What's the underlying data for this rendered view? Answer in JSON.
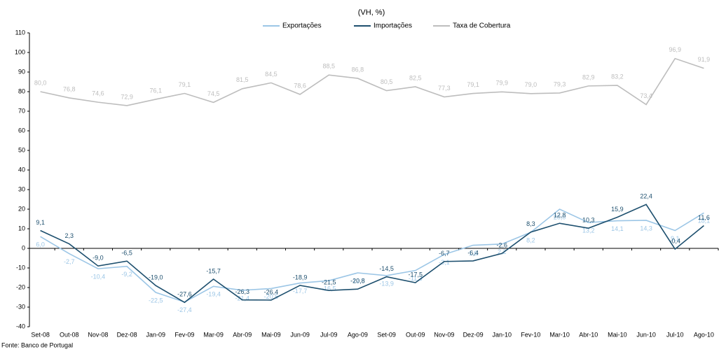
{
  "chart_data": {
    "type": "line",
    "title": "(VH, %)",
    "categories": [
      "Set-08",
      "Out-08",
      "Nov-08",
      "Dez-08",
      "Jan-09",
      "Fev-09",
      "Mar-09",
      "Abr-09",
      "Mai-09",
      "Jun-09",
      "Jul-09",
      "Ago-09",
      "Set-09",
      "Out-09",
      "Nov-09",
      "Dez-09",
      "Jan-10",
      "Fev-10",
      "Mar-10",
      "Abr-10",
      "Mai-10",
      "Jun-10",
      "Jul-10",
      "Ago-10"
    ],
    "series": [
      {
        "name": "Exportações",
        "color": "#9cc6e6",
        "values": [
          6.0,
          -2.7,
          -10.4,
          -9.2,
          -22.5,
          -27.4,
          -19.4,
          -21.4,
          -20.5,
          -17.7,
          -16.5,
          -12.5,
          -13.9,
          -11.3,
          -3.1,
          1.6,
          2.2,
          8.2,
          20.0,
          13.2,
          14.1,
          14.3,
          9.1,
          18.1
        ],
        "value_labels": [
          "6,0",
          "-2,7",
          "-10,4",
          "-9,2",
          "-22,5",
          "-27,4",
          "-19,4",
          "-21,4",
          "-20,5",
          "-17,7",
          "-16,5",
          "-12,5",
          "-13,9",
          "-11,3",
          "-3,1",
          "1,6",
          "2,2",
          "8,2",
          "20,0",
          "13,2",
          "14,1",
          "14,3",
          "9,1",
          "18,1"
        ]
      },
      {
        "name": "Importações",
        "color": "#1d4f6e",
        "values": [
          9.1,
          2.3,
          -9.0,
          -6.5,
          -19.0,
          -27.6,
          -15.7,
          -26.3,
          -26.4,
          -18.9,
          -21.5,
          -20.8,
          -14.5,
          -17.5,
          -6.7,
          -6.4,
          -2.6,
          8.3,
          12.8,
          10.3,
          15.9,
          22.4,
          -0.4,
          11.6
        ],
        "value_labels": [
          "9,1",
          "2,3",
          "-9,0",
          "-6,5",
          "-19,0",
          "-27,6",
          "-15,7",
          "-26,3",
          "-26,4",
          "-18,9",
          "-21,5",
          "-20,8",
          "-14,5",
          "-17,5",
          "-6,7",
          "-6,4",
          "-2,6",
          "8,3",
          "12,8",
          "10,3",
          "15,9",
          "22,4",
          "-0,4",
          "11,6"
        ]
      },
      {
        "name": "Taxa de Cobertura",
        "color": "#bdbdbd",
        "values": [
          80.0,
          76.8,
          74.6,
          72.9,
          76.1,
          79.1,
          74.5,
          81.5,
          84.5,
          78.6,
          88.5,
          86.8,
          80.5,
          82.5,
          77.3,
          79.1,
          79.9,
          79.0,
          79.3,
          82.9,
          83.2,
          73.4,
          96.9,
          91.9
        ],
        "value_labels": [
          "80,0",
          "76,8",
          "74,6",
          "72,9",
          "76,1",
          "79,1",
          "74,5",
          "81,5",
          "84,5",
          "78,6",
          "88,5",
          "86,8",
          "80,5",
          "82,5",
          "77,3",
          "79,1",
          "79,9",
          "79,0",
          "79,3",
          "82,9",
          "83,2",
          "73,4",
          "96,9",
          "91,9"
        ]
      }
    ],
    "ylim": [
      -40,
      110
    ],
    "yticks": [
      -40,
      -30,
      -20,
      -10,
      0,
      10,
      20,
      30,
      40,
      50,
      60,
      70,
      80,
      90,
      100,
      110
    ],
    "legend": "top",
    "source": "Fonte: Banco de Portugal"
  }
}
